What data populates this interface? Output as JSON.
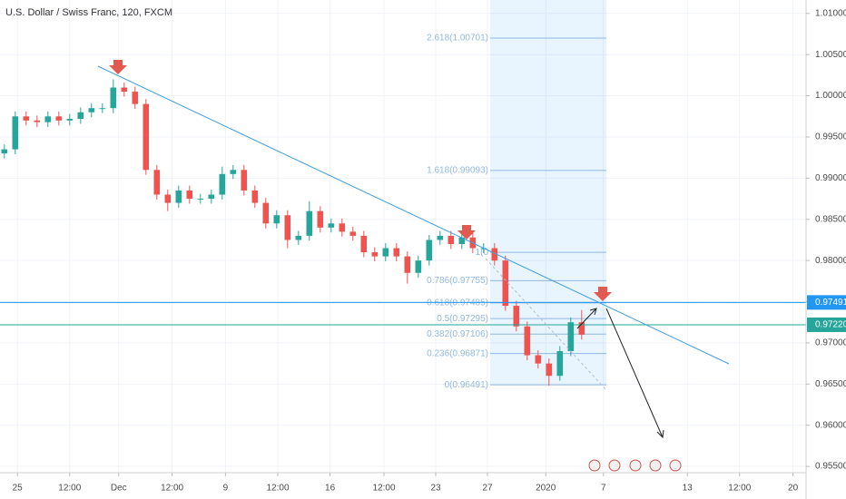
{
  "chart_data": {
    "type": "candlestick",
    "title": "U.S. Dollar / Swiss Franc, 120, FXCM",
    "up_color": "#26a69a",
    "down_color": "#ef5350",
    "x": [
      0,
      1,
      2,
      3,
      4,
      5,
      6,
      7,
      8,
      9,
      10,
      11,
      12,
      13,
      14,
      15,
      16,
      17,
      18,
      19,
      20,
      21,
      22,
      23,
      24,
      25,
      26,
      27,
      28,
      29,
      30,
      31,
      32,
      33,
      34,
      35,
      36,
      37,
      38,
      39,
      40,
      41,
      42,
      43,
      44,
      45,
      46,
      47,
      48,
      49,
      50,
      51,
      52,
      53
    ],
    "open": [
      0.993,
      0.9935,
      0.9975,
      0.997,
      0.9968,
      0.9975,
      0.997,
      0.9972,
      0.998,
      0.9985,
      0.9985,
      1.001,
      1.0005,
      0.999,
      0.991,
      0.988,
      0.987,
      0.9885,
      0.9875,
      0.9875,
      0.988,
      0.9905,
      0.991,
      0.9885,
      0.987,
      0.9845,
      0.9855,
      0.9825,
      0.983,
      0.986,
      0.984,
      0.9845,
      0.9835,
      0.983,
      0.981,
      0.9805,
      0.9815,
      0.9805,
      0.9785,
      0.98,
      0.9825,
      0.983,
      0.982,
      0.9828,
      0.9815,
      0.9815,
      0.98,
      0.9745,
      0.972,
      0.9685,
      0.9675,
      0.966,
      0.969,
      0.9725
    ],
    "high": [
      0.9941,
      0.9981,
      0.9981,
      0.9976,
      0.9981,
      0.9981,
      0.9978,
      0.9986,
      0.9991,
      0.9991,
      1.002,
      1.0016,
      1.0011,
      0.9996,
      0.9916,
      0.9886,
      0.9891,
      0.9891,
      0.9881,
      0.9886,
      0.9914,
      0.9916,
      0.9916,
      0.9891,
      0.9876,
      0.9861,
      0.9861,
      0.9836,
      0.9872,
      0.9866,
      0.9851,
      0.9851,
      0.9841,
      0.9836,
      0.9816,
      0.9821,
      0.9821,
      0.9811,
      0.9806,
      0.9831,
      0.9836,
      0.9836,
      0.9834,
      0.9834,
      0.9821,
      0.9821,
      0.9806,
      0.9751,
      0.9726,
      0.9691,
      0.9681,
      0.9696,
      0.9731,
      0.974
    ],
    "low": [
      0.9924,
      0.9929,
      0.9964,
      0.9962,
      0.9962,
      0.9964,
      0.9964,
      0.9966,
      0.9974,
      0.9979,
      0.9979,
      0.9999,
      0.9984,
      0.9904,
      0.9874,
      0.986,
      0.9864,
      0.9869,
      0.9869,
      0.9869,
      0.9874,
      0.9899,
      0.9879,
      0.9864,
      0.9839,
      0.9839,
      0.9815,
      0.9819,
      0.9824,
      0.9834,
      0.9834,
      0.9829,
      0.9824,
      0.9804,
      0.9799,
      0.9799,
      0.9799,
      0.9772,
      0.9779,
      0.9794,
      0.9819,
      0.9814,
      0.9814,
      0.9809,
      0.9809,
      0.9794,
      0.9739,
      0.9714,
      0.9679,
      0.9669,
      0.9648,
      0.9654,
      0.9684,
      0.9704
    ],
    "close": [
      0.9935,
      0.9975,
      0.997,
      0.9968,
      0.9975,
      0.997,
      0.9972,
      0.998,
      0.9985,
      0.9985,
      1.001,
      1.0005,
      0.999,
      0.991,
      0.988,
      0.987,
      0.9885,
      0.9875,
      0.9875,
      0.988,
      0.9905,
      0.991,
      0.9885,
      0.987,
      0.9845,
      0.9855,
      0.9825,
      0.983,
      0.986,
      0.984,
      0.9845,
      0.9835,
      0.983,
      0.981,
      0.9805,
      0.9815,
      0.9805,
      0.9785,
      0.98,
      0.9825,
      0.983,
      0.982,
      0.9828,
      0.9815,
      0.9815,
      0.98,
      0.9745,
      0.972,
      0.9685,
      0.9675,
      0.966,
      0.969,
      0.9725,
      0.971
    ],
    "xlim": [
      -0.4,
      73.6
    ],
    "xticks": [
      {
        "value": 1.2,
        "label": "25"
      },
      {
        "value": 6,
        "label": "12:00"
      },
      {
        "value": 10.5,
        "label": "Dec"
      },
      {
        "value": 15.4,
        "label": "12:00"
      },
      {
        "value": 20.3,
        "label": "9"
      },
      {
        "value": 25.1,
        "label": "12:00"
      },
      {
        "value": 29.9,
        "label": "16"
      },
      {
        "value": 34.85,
        "label": "12:00"
      },
      {
        "value": 39.6,
        "label": "23"
      },
      {
        "value": 44.35,
        "label": "27"
      },
      {
        "value": 49.7,
        "label": "2020"
      },
      {
        "value": 55,
        "label": "7"
      },
      {
        "value": 62.7,
        "label": "13"
      },
      {
        "value": 67.5,
        "label": "12:00"
      },
      {
        "value": 72.4,
        "label": "20"
      }
    ],
    "ylim": [
      0.95424,
      1.01163
    ],
    "yticks": [
      {
        "value": 1.01,
        "label": "1.01000"
      },
      {
        "value": 1.005,
        "label": "1.00500"
      },
      {
        "value": 1.0,
        "label": "1.00000"
      },
      {
        "value": 0.995,
        "label": "0.99500"
      },
      {
        "value": 0.99,
        "label": "0.99000"
      },
      {
        "value": 0.985,
        "label": "0.98500"
      },
      {
        "value": 0.98,
        "label": "0.98000"
      },
      {
        "value": 0.975,
        "label": "0.97500"
      },
      {
        "value": 0.97,
        "label": "0.97000"
      },
      {
        "value": 0.965,
        "label": "0.96500"
      },
      {
        "value": 0.96,
        "label": "0.96000"
      },
      {
        "value": 0.955,
        "label": "0.95500"
      }
    ],
    "grid": true,
    "fib_color": "#90b8e0",
    "fib_levels": [
      {
        "value": 1.00701,
        "label": "2.618(1.00701)"
      },
      {
        "value": 0.99093,
        "label": "1.618(0.99093)"
      },
      {
        "value": 0.98099,
        "label": "1(0"
      },
      {
        "value": 0.97755,
        "label": "0.786(0.97755)"
      },
      {
        "value": 0.97485,
        "label": "0.618(0.97485)"
      },
      {
        "value": 0.97295,
        "label": "0.5(0.97295)"
      },
      {
        "value": 0.97106,
        "label": "0.382(0.97106)"
      },
      {
        "value": 0.96871,
        "label": "0.236(0.96871)"
      },
      {
        "value": 0.96491,
        "label": "0(0.96491)"
      }
    ],
    "hlines": [
      {
        "value": 0.97491,
        "label": "0.97491",
        "color": "#2196f3"
      },
      {
        "value": 0.9722,
        "label": "0.97220",
        "color": "#26a69a"
      }
    ]
  }
}
